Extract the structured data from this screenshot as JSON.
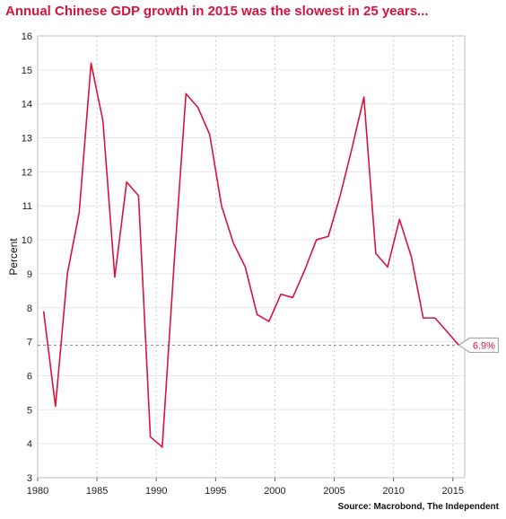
{
  "title": "Annual Chinese GDP growth in 2015 was the slowest in 25 years...",
  "source": "Source: Macrobond, The Independent",
  "colors": {
    "title": "#d7133e",
    "series": "#d7133e",
    "grid": "#cccccc",
    "reference_line": "#888888"
  },
  "chart_data": {
    "type": "line",
    "title": "Annual Chinese GDP growth in 2015 was the slowest in 25 years...",
    "xlabel": "",
    "ylabel": "Percent",
    "xlim": [
      1980,
      2016
    ],
    "ylim": [
      3,
      16
    ],
    "grid": true,
    "x_ticks": [
      1980,
      1985,
      1990,
      1995,
      2000,
      2005,
      2010,
      2015
    ],
    "y_ticks": [
      3,
      4,
      5,
      6,
      7,
      8,
      9,
      10,
      11,
      12,
      13,
      14,
      15,
      16
    ],
    "series": [
      {
        "x": [
          1980.5,
          1981.5,
          1982.5,
          1983.5,
          1984.5,
          1985.5,
          1986.5,
          1987.5,
          1988.5,
          1989.5,
          1990.5,
          1991.5,
          1992.5,
          1993.5,
          1994.5,
          1995.5,
          1996.5,
          1997.5,
          1998.5,
          1999.5,
          2000.5,
          2001.5,
          2002.5,
          2003.5,
          2004.5,
          2005.5,
          2006.5,
          2007.5,
          2008.5,
          2009.5,
          2010.5,
          2011.5,
          2012.5,
          2013.5,
          2014.5,
          2015.5
        ],
        "values": [
          7.9,
          5.1,
          9.0,
          10.8,
          15.2,
          13.5,
          8.9,
          11.7,
          11.3,
          4.2,
          3.9,
          9.3,
          14.3,
          13.9,
          13.1,
          11.0,
          9.9,
          9.2,
          7.8,
          7.6,
          8.4,
          8.3,
          9.1,
          10.0,
          10.1,
          11.3,
          12.7,
          14.2,
          9.6,
          9.2,
          10.6,
          9.5,
          7.7,
          7.7,
          7.3,
          6.9
        ]
      }
    ],
    "reference_line": {
      "y": 6.9
    },
    "annotations": [
      {
        "x": 2015.5,
        "y": 6.9,
        "text": "6.9%"
      }
    ]
  }
}
